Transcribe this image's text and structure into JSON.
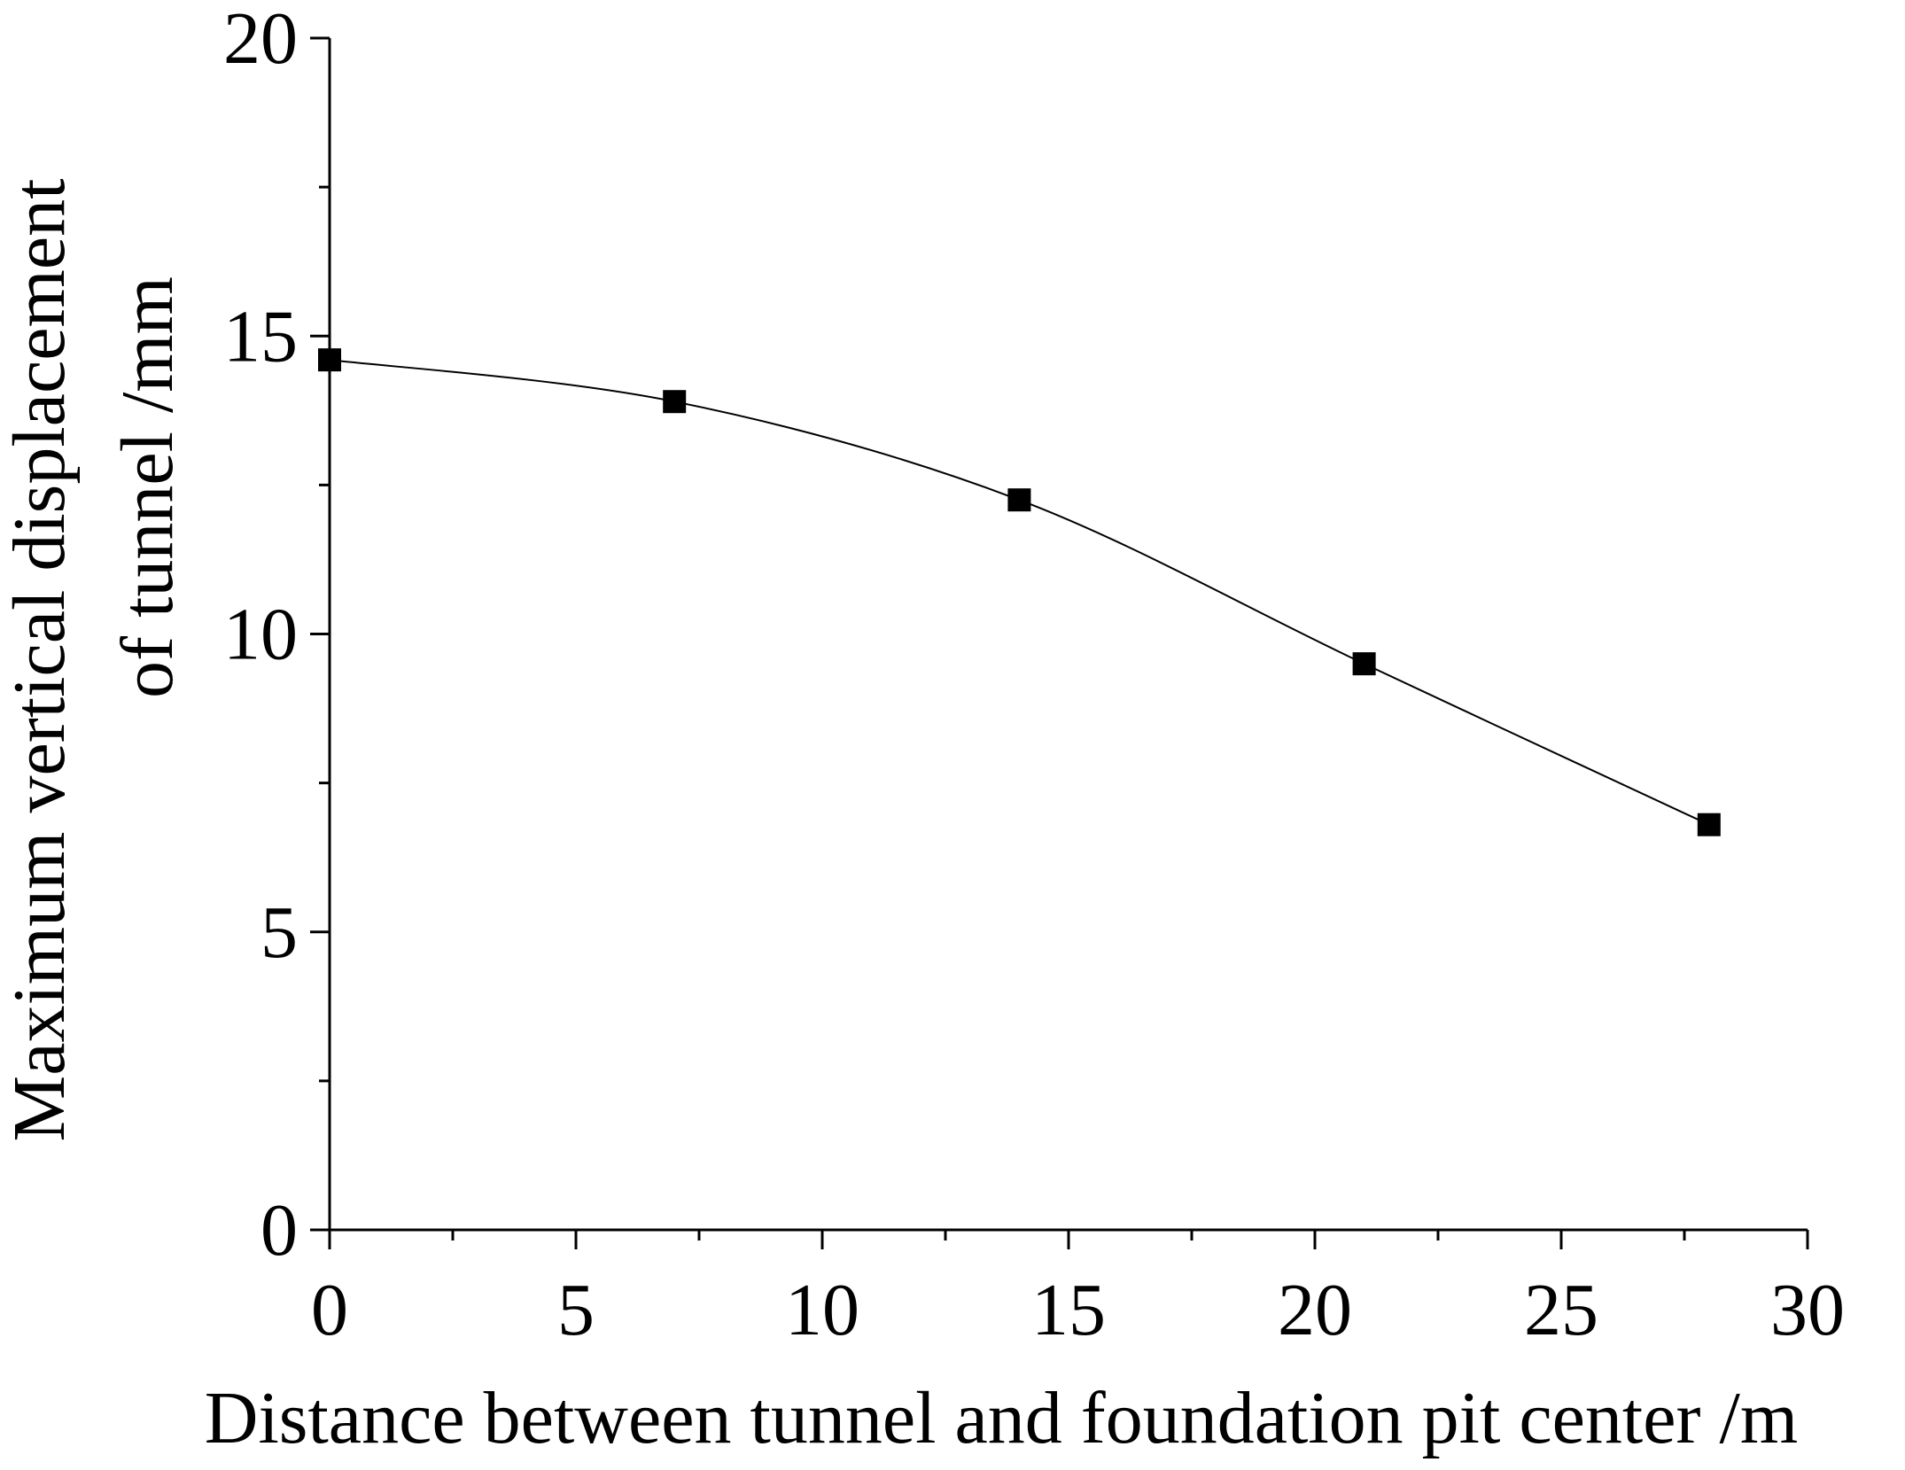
{
  "chart_data": {
    "type": "line",
    "title": "",
    "xlabel": "Distance between tunnel and foundation pit center /m",
    "ylabel_lines": [
      "Maximum vertical displacement",
      "of tunnel /mm"
    ],
    "xlim": [
      0,
      30
    ],
    "ylim": [
      0,
      20
    ],
    "xticks": [
      0,
      5,
      10,
      15,
      20,
      25,
      30
    ],
    "yticks": [
      0,
      5,
      10,
      15,
      20
    ],
    "xtick_labels": [
      "0",
      "5",
      "10",
      "15",
      "20",
      "25",
      "30"
    ],
    "ytick_labels": [
      "0",
      "5",
      "10",
      "15",
      "20"
    ],
    "grid": false,
    "legend": "none",
    "series": [
      {
        "marker": "square",
        "smoothed": true,
        "color": "#000000",
        "x": [
          0,
          7,
          14,
          21,
          28
        ],
        "y": [
          14.6,
          13.9,
          12.25,
          9.5,
          6.8
        ]
      }
    ]
  }
}
